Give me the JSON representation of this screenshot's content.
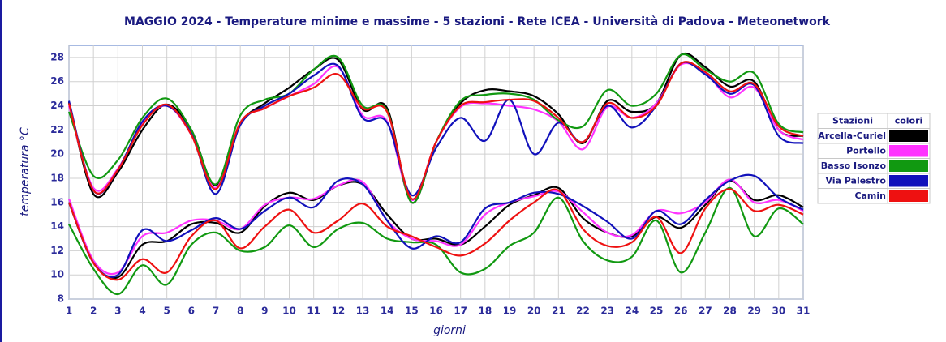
{
  "chart_data": {
    "type": "line",
    "title": "MAGGIO 2024 - Temperature minime e massime - 5 stazioni -  Rete ICEA - Università di Padova - Meteonetwork",
    "x_label": "giorni",
    "y_label": "temperatura °C",
    "x": [
      1,
      2,
      3,
      4,
      5,
      6,
      7,
      8,
      9,
      10,
      11,
      12,
      13,
      14,
      15,
      16,
      17,
      18,
      19,
      20,
      21,
      22,
      23,
      24,
      25,
      26,
      27,
      28,
      29,
      30,
      31
    ],
    "xlim": [
      1,
      31
    ],
    "xticks": [
      1,
      2,
      3,
      4,
      5,
      6,
      7,
      8,
      9,
      10,
      11,
      12,
      13,
      14,
      15,
      16,
      17,
      18,
      19,
      20,
      21,
      22,
      23,
      24,
      25,
      26,
      27,
      28,
      29,
      30,
      31
    ],
    "ylim": [
      8,
      29
    ],
    "yticks": [
      8,
      10,
      12,
      14,
      16,
      18,
      20,
      22,
      24,
      26,
      28
    ],
    "grid": true,
    "legend_headers": [
      "Stazioni",
      "colori"
    ],
    "series": [
      {
        "name": "Arcella-Curiel",
        "color": "#000000",
        "max": [
          24.3,
          16.7,
          18.5,
          22,
          24.1,
          22,
          17.4,
          22.5,
          24.2,
          25.5,
          27,
          27.8,
          23.7,
          23.8,
          16,
          21,
          24.2,
          25.3,
          25.2,
          24.8,
          23.3,
          20.9,
          24.4,
          23.5,
          24.2,
          28.2,
          27.2,
          25.6,
          26,
          22,
          21.5
        ],
        "min": [
          16,
          11,
          9.8,
          12.5,
          12.8,
          14.2,
          14.3,
          13.5,
          15.7,
          16.8,
          16.2,
          17.4,
          17.5,
          15,
          13,
          13,
          12.5,
          14,
          15.8,
          16.6,
          17.2,
          14.7,
          13.5,
          13.2,
          14.8,
          13.9,
          15.8,
          17.8,
          16.2,
          16.6,
          15.6
        ]
      },
      {
        "name": "Portello",
        "color": "#ff33ff",
        "max": [
          24,
          17.2,
          18.8,
          22.5,
          24,
          21.6,
          17.2,
          22.6,
          23.8,
          24.8,
          25.8,
          27.2,
          23.2,
          22.7,
          16.2,
          21,
          23.9,
          24.2,
          24,
          23.7,
          22.7,
          20.4,
          23.9,
          23,
          24.2,
          27.4,
          26.7,
          24.7,
          25.5,
          22,
          21.2
        ],
        "min": [
          16.3,
          11.2,
          10.2,
          13.2,
          13.5,
          14.5,
          14.5,
          13.8,
          15.8,
          16.4,
          16.3,
          17.4,
          17.7,
          14.5,
          13,
          12.8,
          12.5,
          15,
          16,
          16.5,
          16.9,
          15.2,
          13.5,
          13.3,
          15.3,
          15.1,
          16,
          17.9,
          16,
          16.2,
          15.3
        ]
      },
      {
        "name": "Basso Isonzo",
        "color": "#119911",
        "max": [
          23.5,
          18.2,
          19.5,
          23,
          24.6,
          22,
          17.5,
          23.2,
          24.5,
          25,
          27,
          28,
          24,
          23.6,
          16,
          21,
          24.4,
          24.9,
          25,
          24.5,
          22.8,
          22.3,
          25.3,
          24,
          25,
          28.2,
          27,
          26,
          26.7,
          22.5,
          21.8
        ],
        "min": [
          14.2,
          10.5,
          8.4,
          10.8,
          9.2,
          12.5,
          13.5,
          12,
          12.3,
          14.1,
          12.3,
          13.8,
          14.3,
          13,
          12.7,
          12.5,
          10.2,
          10.5,
          12.4,
          13.5,
          16.4,
          12.8,
          11.2,
          11.5,
          14.5,
          10.2,
          13.5,
          17.2,
          13.2,
          15.5,
          14.2
        ]
      },
      {
        "name": "Via Palestro",
        "color": "#1111bb",
        "max": [
          24.4,
          17,
          18.7,
          22.7,
          24,
          21.7,
          16.7,
          22.4,
          24,
          25,
          26.5,
          27.3,
          23,
          22.6,
          16.6,
          20.5,
          23,
          21.1,
          24.5,
          20,
          22.6,
          21,
          24,
          22.2,
          24,
          27.5,
          26.6,
          25,
          25.7,
          21.5,
          20.9
        ],
        "min": [
          16,
          11,
          10,
          13.7,
          12.8,
          13.7,
          14.7,
          13.8,
          15.3,
          16.4,
          15.6,
          17.8,
          17.5,
          14.5,
          12.2,
          13.2,
          12.7,
          15.5,
          16,
          16.8,
          16.7,
          15.7,
          14.4,
          13,
          15.3,
          14.2,
          16.2,
          17.8,
          18.2,
          16.4,
          15.4
        ]
      },
      {
        "name": "Camin",
        "color": "#ee1111",
        "max": [
          24.2,
          17,
          18.7,
          22.4,
          24.1,
          21.6,
          17.1,
          22.6,
          23.8,
          24.8,
          25.5,
          26.6,
          23.8,
          23.5,
          16.3,
          21,
          24,
          24.3,
          24.5,
          24.4,
          23,
          21,
          24.2,
          23,
          24,
          27.5,
          26.8,
          25.2,
          25.8,
          22.3,
          21.5
        ],
        "min": [
          16,
          11,
          9.6,
          11.3,
          10.2,
          13.2,
          14.5,
          12.2,
          14,
          15.4,
          13.5,
          14.5,
          15.9,
          14,
          13.2,
          12.3,
          11.6,
          12.6,
          14.5,
          16,
          17,
          13.8,
          12.4,
          12.7,
          14.8,
          11.8,
          15.5,
          17.1,
          15.3,
          15.8,
          15
        ]
      }
    ]
  }
}
